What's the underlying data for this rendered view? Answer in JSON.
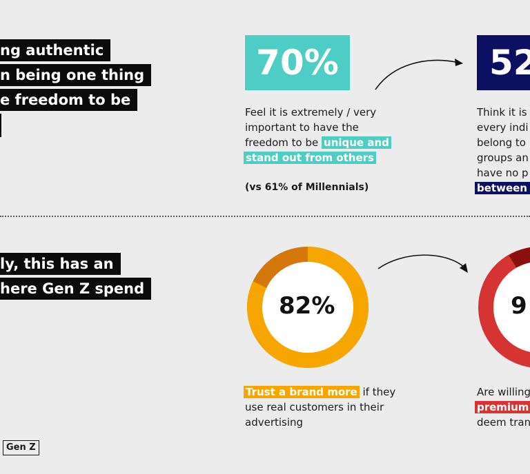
{
  "top_section": {
    "headline_lines": [
      "ng authentic",
      "n being one thing",
      "e freedom to be",
      ""
    ],
    "stat1": {
      "value": "70%",
      "color": "#4ecdc4",
      "text_line1": "Feel it is extremely / very",
      "text_line2": "important to have the",
      "text_line3_prefix": "freedom to be",
      "highlight_line1": "unique and",
      "highlight_line2": "stand out from others",
      "note": "(vs 61% of Millennials)"
    },
    "stat2": {
      "value": "52",
      "color": "#0b1060",
      "lines": [
        "Think it is",
        "every indi",
        "belong to",
        "groups an",
        "have no p"
      ],
      "highlight": "between g"
    }
  },
  "bottom_section": {
    "headline_lines": [
      "ly, this has an",
      "here Gen Z spend"
    ],
    "donut1": {
      "value_label": "82%",
      "percent": 82,
      "main_color": "#f7a600",
      "secondary_color": "#d4780b",
      "highlight": "Trust a brand more",
      "text_line1_suffix": "if they",
      "text_line2": "use real customers in their",
      "text_line3": "advertising"
    },
    "donut2": {
      "value_label": "9",
      "main_color": "#d63333",
      "secondary_color": "#8b1010",
      "text_line1": "Are willing",
      "highlight": "premium",
      "text_line3": "deem tran"
    }
  },
  "logo": {
    "label": "Gen Z"
  }
}
